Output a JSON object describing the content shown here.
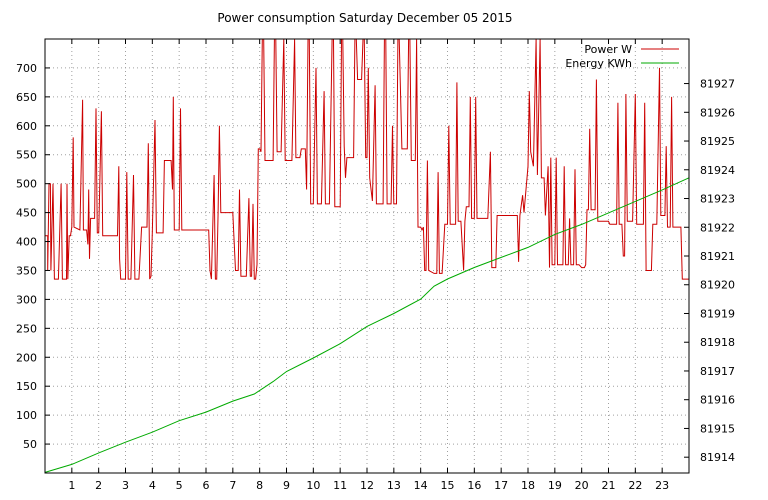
{
  "chart_data": {
    "type": "line",
    "title": "Power consumption Saturday December 05 2015",
    "x_ticks": [
      1,
      2,
      3,
      4,
      5,
      6,
      7,
      8,
      9,
      10,
      11,
      12,
      13,
      14,
      15,
      16,
      17,
      18,
      19,
      20,
      21,
      22,
      23
    ],
    "xlim": [
      0,
      24
    ],
    "ylim_left": [
      0,
      750
    ],
    "yticks_left": [
      50,
      100,
      150,
      200,
      250,
      300,
      350,
      400,
      450,
      500,
      550,
      600,
      650,
      700
    ],
    "ylim_right": [
      81913.45,
      81928.55
    ],
    "yticks_right": [
      81914,
      81915,
      81916,
      81917,
      81918,
      81919,
      81920,
      81921,
      81922,
      81923,
      81924,
      81925,
      81926,
      81927
    ],
    "grid": true,
    "legend_position": "top-right",
    "series": [
      {
        "name": "Power W",
        "axis": "left",
        "color": "#cc0000",
        "points": [
          [
            0.0,
            410
          ],
          [
            0.1,
            410
          ],
          [
            0.1,
            350
          ],
          [
            0.15,
            500
          ],
          [
            0.2,
            500
          ],
          [
            0.22,
            350
          ],
          [
            0.3,
            500
          ],
          [
            0.35,
            335
          ],
          [
            0.5,
            335
          ],
          [
            0.6,
            500
          ],
          [
            0.65,
            335
          ],
          [
            0.8,
            335
          ],
          [
            0.82,
            500
          ],
          [
            0.85,
            335
          ],
          [
            0.9,
            410
          ],
          [
            0.95,
            410
          ],
          [
            1.0,
            425
          ],
          [
            1.05,
            580
          ],
          [
            1.08,
            425
          ],
          [
            1.3,
            420
          ],
          [
            1.4,
            645
          ],
          [
            1.43,
            420
          ],
          [
            1.55,
            420
          ],
          [
            1.6,
            395
          ],
          [
            1.63,
            490
          ],
          [
            1.66,
            370
          ],
          [
            1.7,
            440
          ],
          [
            1.85,
            440
          ],
          [
            1.9,
            630
          ],
          [
            1.95,
            415
          ],
          [
            2.0,
            415
          ],
          [
            2.1,
            625
          ],
          [
            2.15,
            410
          ],
          [
            2.3,
            410
          ],
          [
            2.7,
            410
          ],
          [
            2.75,
            530
          ],
          [
            2.78,
            370
          ],
          [
            2.82,
            335
          ],
          [
            3.0,
            335
          ],
          [
            3.05,
            520
          ],
          [
            3.1,
            335
          ],
          [
            3.2,
            335
          ],
          [
            3.3,
            515
          ],
          [
            3.35,
            335
          ],
          [
            3.5,
            335
          ],
          [
            3.6,
            425
          ],
          [
            3.8,
            425
          ],
          [
            3.85,
            570
          ],
          [
            3.9,
            335
          ],
          [
            3.95,
            340
          ],
          [
            4.0,
            415
          ],
          [
            4.1,
            610
          ],
          [
            4.15,
            415
          ],
          [
            4.4,
            415
          ],
          [
            4.45,
            540
          ],
          [
            4.7,
            540
          ],
          [
            4.75,
            490
          ],
          [
            4.78,
            650
          ],
          [
            4.82,
            420
          ],
          [
            5.0,
            420
          ],
          [
            5.05,
            630
          ],
          [
            5.1,
            420
          ],
          [
            6.0,
            420
          ],
          [
            6.1,
            420
          ],
          [
            6.15,
            350
          ],
          [
            6.2,
            335
          ],
          [
            6.3,
            515
          ],
          [
            6.35,
            335
          ],
          [
            6.4,
            335
          ],
          [
            6.45,
            450
          ],
          [
            6.5,
            600
          ],
          [
            6.55,
            450
          ],
          [
            6.7,
            450
          ],
          [
            7.0,
            450
          ],
          [
            7.1,
            350
          ],
          [
            7.2,
            350
          ],
          [
            7.25,
            490
          ],
          [
            7.3,
            340
          ],
          [
            7.5,
            340
          ],
          [
            7.6,
            475
          ],
          [
            7.65,
            340
          ],
          [
            7.7,
            340
          ],
          [
            7.75,
            465
          ],
          [
            7.8,
            335
          ],
          [
            7.85,
            335
          ],
          [
            7.9,
            360
          ],
          [
            7.95,
            560
          ],
          [
            8.0,
            560
          ],
          [
            8.05,
            555
          ],
          [
            8.1,
            750
          ],
          [
            8.15,
            750
          ],
          [
            8.2,
            540
          ],
          [
            8.5,
            540
          ],
          [
            8.55,
            750
          ],
          [
            8.6,
            750
          ],
          [
            8.65,
            555
          ],
          [
            8.8,
            555
          ],
          [
            8.9,
            750
          ],
          [
            8.95,
            540
          ],
          [
            9.0,
            540
          ],
          [
            9.1,
            540
          ],
          [
            9.2,
            540
          ],
          [
            9.3,
            750
          ],
          [
            9.35,
            545
          ],
          [
            9.5,
            545
          ],
          [
            9.55,
            560
          ],
          [
            9.7,
            560
          ],
          [
            9.75,
            490
          ],
          [
            9.8,
            750
          ],
          [
            9.85,
            750
          ],
          [
            9.9,
            465
          ],
          [
            10.0,
            465
          ],
          [
            10.1,
            700
          ],
          [
            10.15,
            465
          ],
          [
            10.3,
            465
          ],
          [
            10.4,
            660
          ],
          [
            10.45,
            465
          ],
          [
            10.6,
            465
          ],
          [
            10.7,
            750
          ],
          [
            10.75,
            750
          ],
          [
            10.8,
            460
          ],
          [
            11.0,
            460
          ],
          [
            11.05,
            750
          ],
          [
            11.1,
            750
          ],
          [
            11.15,
            565
          ],
          [
            11.2,
            510
          ],
          [
            11.25,
            545
          ],
          [
            11.5,
            545
          ],
          [
            11.55,
            750
          ],
          [
            11.6,
            750
          ],
          [
            11.65,
            680
          ],
          [
            11.8,
            680
          ],
          [
            11.85,
            750
          ],
          [
            11.9,
            750
          ],
          [
            11.95,
            545
          ],
          [
            12.0,
            545
          ],
          [
            12.05,
            700
          ],
          [
            12.1,
            510
          ],
          [
            12.2,
            470
          ],
          [
            12.3,
            670
          ],
          [
            12.35,
            465
          ],
          [
            12.6,
            465
          ],
          [
            12.65,
            750
          ],
          [
            12.7,
            750
          ],
          [
            12.75,
            465
          ],
          [
            12.9,
            465
          ],
          [
            12.95,
            600
          ],
          [
            13.0,
            465
          ],
          [
            13.1,
            465
          ],
          [
            13.15,
            750
          ],
          [
            13.2,
            750
          ],
          [
            13.3,
            560
          ],
          [
            13.5,
            560
          ],
          [
            13.55,
            750
          ],
          [
            13.6,
            750
          ],
          [
            13.65,
            540
          ],
          [
            13.8,
            540
          ],
          [
            13.85,
            750
          ],
          [
            13.9,
            425
          ],
          [
            14.0,
            425
          ],
          [
            14.05,
            420
          ],
          [
            14.1,
            425
          ],
          [
            14.15,
            350
          ],
          [
            14.2,
            350
          ],
          [
            14.25,
            540
          ],
          [
            14.3,
            350
          ],
          [
            14.5,
            345
          ],
          [
            14.6,
            345
          ],
          [
            14.65,
            520
          ],
          [
            14.7,
            345
          ],
          [
            14.8,
            345
          ],
          [
            14.9,
            430
          ],
          [
            15.0,
            430
          ],
          [
            15.05,
            600
          ],
          [
            15.1,
            430
          ],
          [
            15.3,
            430
          ],
          [
            15.35,
            675
          ],
          [
            15.4,
            435
          ],
          [
            15.5,
            435
          ],
          [
            15.6,
            350
          ],
          [
            15.65,
            435
          ],
          [
            15.7,
            460
          ],
          [
            15.8,
            460
          ],
          [
            15.85,
            650
          ],
          [
            15.9,
            440
          ],
          [
            16.0,
            440
          ],
          [
            16.05,
            650
          ],
          [
            16.1,
            440
          ],
          [
            16.5,
            440
          ],
          [
            16.6,
            555
          ],
          [
            16.65,
            355
          ],
          [
            16.7,
            355
          ],
          [
            16.8,
            355
          ],
          [
            16.85,
            445
          ],
          [
            17.0,
            445
          ],
          [
            17.5,
            445
          ],
          [
            17.6,
            445
          ],
          [
            17.65,
            365
          ],
          [
            17.7,
            445
          ],
          [
            17.8,
            480
          ],
          [
            17.85,
            450
          ],
          [
            18.0,
            530
          ],
          [
            18.05,
            660
          ],
          [
            18.1,
            555
          ],
          [
            18.2,
            530
          ],
          [
            18.3,
            750
          ],
          [
            18.35,
            515
          ],
          [
            18.45,
            750
          ],
          [
            18.5,
            510
          ],
          [
            18.6,
            510
          ],
          [
            18.65,
            445
          ],
          [
            18.75,
            530
          ],
          [
            18.8,
            355
          ],
          [
            18.85,
            545
          ],
          [
            18.9,
            360
          ],
          [
            19.0,
            360
          ],
          [
            19.05,
            545
          ],
          [
            19.1,
            360
          ],
          [
            19.3,
            360
          ],
          [
            19.35,
            530
          ],
          [
            19.4,
            360
          ],
          [
            19.5,
            360
          ],
          [
            19.55,
            440
          ],
          [
            19.6,
            360
          ],
          [
            19.7,
            360
          ],
          [
            19.75,
            525
          ],
          [
            19.8,
            360
          ],
          [
            19.9,
            360
          ],
          [
            20.0,
            355
          ],
          [
            20.1,
            355
          ],
          [
            20.15,
            360
          ],
          [
            20.2,
            455
          ],
          [
            20.25,
            455
          ],
          [
            20.3,
            595
          ],
          [
            20.35,
            455
          ],
          [
            20.5,
            455
          ],
          [
            20.55,
            680
          ],
          [
            20.6,
            435
          ],
          [
            21.0,
            435
          ],
          [
            21.05,
            430
          ],
          [
            21.3,
            430
          ],
          [
            21.35,
            640
          ],
          [
            21.4,
            430
          ],
          [
            21.5,
            430
          ],
          [
            21.55,
            375
          ],
          [
            21.6,
            375
          ],
          [
            21.65,
            655
          ],
          [
            21.7,
            435
          ],
          [
            21.9,
            435
          ],
          [
            22.0,
            655
          ],
          [
            22.05,
            430
          ],
          [
            22.3,
            430
          ],
          [
            22.35,
            640
          ],
          [
            22.4,
            350
          ],
          [
            22.5,
            350
          ],
          [
            22.6,
            350
          ],
          [
            22.65,
            430
          ],
          [
            22.8,
            430
          ],
          [
            22.9,
            700
          ],
          [
            22.95,
            445
          ],
          [
            23.1,
            445
          ],
          [
            23.15,
            565
          ],
          [
            23.2,
            425
          ],
          [
            23.3,
            425
          ],
          [
            23.35,
            650
          ],
          [
            23.4,
            425
          ],
          [
            23.7,
            425
          ],
          [
            23.75,
            335
          ],
          [
            24.0,
            335
          ]
        ]
      },
      {
        "name": "Energy KWh",
        "axis": "right",
        "color": "#00aa00",
        "points": [
          [
            0.0,
            81913.47
          ],
          [
            1.0,
            81913.75
          ],
          [
            2.0,
            81914.15
          ],
          [
            3.0,
            81914.52
          ],
          [
            4.0,
            81914.87
          ],
          [
            5.0,
            81915.27
          ],
          [
            6.0,
            81915.57
          ],
          [
            7.0,
            81915.95
          ],
          [
            7.8,
            81916.2
          ],
          [
            8.5,
            81916.63
          ],
          [
            9.0,
            81916.98
          ],
          [
            10.0,
            81917.45
          ],
          [
            11.0,
            81917.95
          ],
          [
            12.0,
            81918.55
          ],
          [
            13.0,
            81919.0
          ],
          [
            14.0,
            81919.5
          ],
          [
            14.5,
            81919.95
          ],
          [
            15.0,
            81920.2
          ],
          [
            16.0,
            81920.6
          ],
          [
            17.0,
            81920.95
          ],
          [
            18.0,
            81921.3
          ],
          [
            19.0,
            81921.75
          ],
          [
            20.0,
            81922.1
          ],
          [
            21.0,
            81922.5
          ],
          [
            22.0,
            81922.9
          ],
          [
            23.0,
            81923.3
          ],
          [
            24.0,
            81923.72
          ]
        ]
      }
    ]
  }
}
